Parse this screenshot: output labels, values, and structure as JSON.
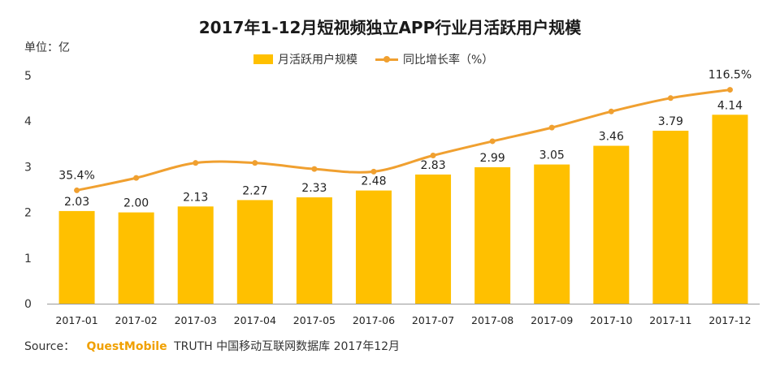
{
  "chart_data": {
    "type": "bar",
    "title": "2017年1-12月短视频独立APP行业月活跃用户规模",
    "unit_label": "单位：亿",
    "categories": [
      "2017-01",
      "2017-02",
      "2017-03",
      "2017-04",
      "2017-05",
      "2017-06",
      "2017-07",
      "2017-08",
      "2017-09",
      "2017-10",
      "2017-11",
      "2017-12"
    ],
    "series": [
      {
        "name": "月活跃用户规模",
        "type": "bar",
        "axis": "left",
        "values": [
          2.03,
          2.0,
          2.13,
          2.27,
          2.33,
          2.48,
          2.83,
          2.99,
          3.05,
          3.46,
          3.79,
          4.14
        ],
        "labels": [
          "2.03",
          "2.00",
          "2.13",
          "2.27",
          "2.33",
          "2.48",
          "2.83",
          "2.99",
          "3.05",
          "3.46",
          "3.79",
          "4.14"
        ],
        "color": "#FFC000"
      },
      {
        "name": "同比增长率（%）",
        "type": "line",
        "axis": "right",
        "values": [
          35.4,
          45.4,
          57.5,
          57.5,
          52.6,
          50.5,
          63.5,
          75.0,
          86.0,
          99.0,
          109.8,
          116.5
        ],
        "value_labels": {
          "first": "35.4%",
          "last": "116.5%"
        },
        "color": "#F0A030"
      }
    ],
    "ylim": [
      0,
      5
    ],
    "yticks": [
      0,
      1,
      2,
      3,
      4,
      5
    ],
    "y2lim": [
      -56,
      128
    ],
    "legend_position": "top-center"
  },
  "source": {
    "prefix": "Source：",
    "brand": "QuestMobile",
    "text": "TRUTH 中国移动互联网数据库 2017年12月"
  }
}
